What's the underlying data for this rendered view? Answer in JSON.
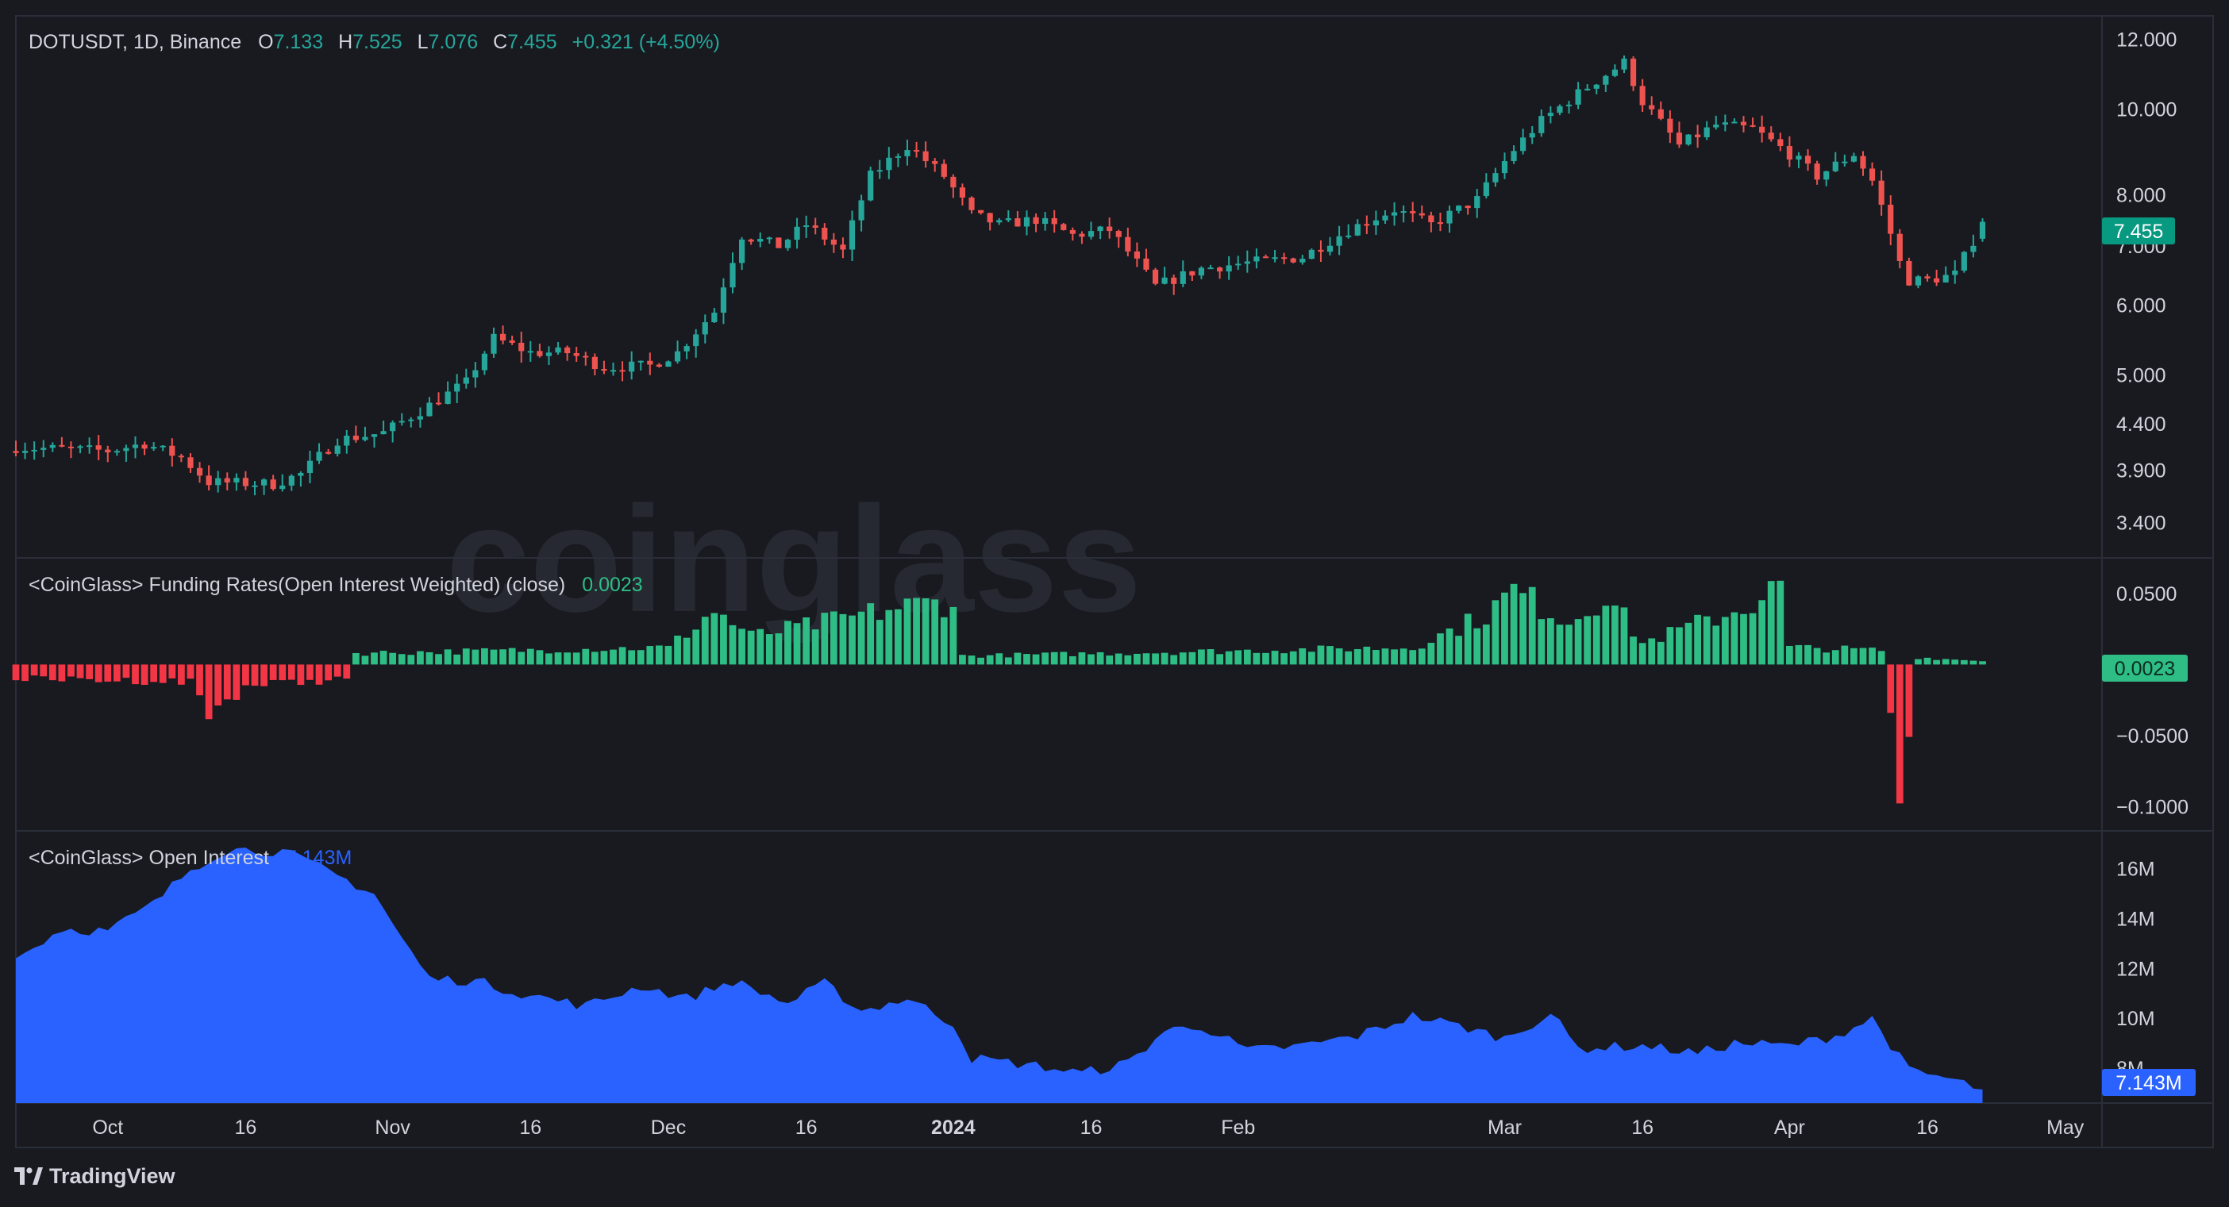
{
  "main_pane": {
    "symbol": "DOTUSDT, 1D, Binance",
    "ohlc": [
      {
        "label": "O",
        "value": "7.133"
      },
      {
        "label": "H",
        "value": "7.525"
      },
      {
        "label": "L",
        "value": "7.076"
      },
      {
        "label": "C",
        "value": "7.455"
      }
    ],
    "change": "+0.321 (+4.50%)",
    "last_price_label": "7.455",
    "up_color": "#26a69a",
    "down_color": "#ef5350"
  },
  "funding_pane": {
    "title": "<CoinGlass> Funding Rates(Open Interest Weighted) (close)",
    "value": "0.0023",
    "last_value_label": "0.0023",
    "up_color": "#2ebd85",
    "down_color": "#f23645"
  },
  "oi_pane": {
    "title": "<CoinGlass> Open Interest",
    "value": "7.143M",
    "last_value_label": "7.143M",
    "fill_color": "#2962ff"
  },
  "watermark": "coinglass",
  "brand": "TradingView",
  "chart_data": [
    {
      "type": "candlestick",
      "axis_scale": "log",
      "y_ticks": [
        "12.000",
        "10.000",
        "8.000",
        "7.000",
        "6.000",
        "5.000",
        "4.400",
        "3.900",
        "3.400"
      ],
      "x_ticks": [
        "Oct",
        "16",
        "Nov",
        "16",
        "Dec",
        "16",
        "2024",
        "16",
        "Feb",
        "Mar",
        "16",
        "Apr",
        "16",
        "May"
      ],
      "x_range": [
        "2023-09-21",
        "2024-05-05"
      ],
      "close_key_points": [
        {
          "date": "2023-09-21",
          "close": 4.14
        },
        {
          "date": "2023-10-01",
          "close": 4.1
        },
        {
          "date": "2023-10-05",
          "close": 4.18
        },
        {
          "date": "2023-10-09",
          "close": 4.03
        },
        {
          "date": "2023-10-12",
          "close": 3.78
        },
        {
          "date": "2023-10-19",
          "close": 3.76
        },
        {
          "date": "2023-10-22",
          "close": 3.86
        },
        {
          "date": "2023-10-26",
          "close": 4.22
        },
        {
          "date": "2023-10-31",
          "close": 4.3
        },
        {
          "date": "2023-11-04",
          "close": 4.55
        },
        {
          "date": "2023-11-09",
          "close": 4.9
        },
        {
          "date": "2023-11-12",
          "close": 5.5
        },
        {
          "date": "2023-11-16",
          "close": 5.3
        },
        {
          "date": "2023-11-20",
          "close": 5.3
        },
        {
          "date": "2023-11-24",
          "close": 5.1
        },
        {
          "date": "2023-11-29",
          "close": 5.12
        },
        {
          "date": "2023-12-02",
          "close": 5.3
        },
        {
          "date": "2023-12-06",
          "close": 5.9
        },
        {
          "date": "2023-12-09",
          "close": 7.2
        },
        {
          "date": "2023-12-13",
          "close": 7.0
        },
        {
          "date": "2023-12-16",
          "close": 7.4
        },
        {
          "date": "2023-12-20",
          "close": 6.9
        },
        {
          "date": "2023-12-23",
          "close": 8.4
        },
        {
          "date": "2023-12-27",
          "close": 9.1
        },
        {
          "date": "2023-12-31",
          "close": 8.4
        },
        {
          "date": "2024-01-03",
          "close": 7.6
        },
        {
          "date": "2024-01-06",
          "close": 7.4
        },
        {
          "date": "2024-01-10",
          "close": 7.5
        },
        {
          "date": "2024-01-14",
          "close": 7.2
        },
        {
          "date": "2024-01-18",
          "close": 7.3
        },
        {
          "date": "2024-01-23",
          "close": 6.3
        },
        {
          "date": "2024-01-28",
          "close": 6.6
        },
        {
          "date": "2024-02-02",
          "close": 6.7
        },
        {
          "date": "2024-02-08",
          "close": 6.8
        },
        {
          "date": "2024-02-13",
          "close": 7.3
        },
        {
          "date": "2024-02-18",
          "close": 7.7
        },
        {
          "date": "2024-02-22",
          "close": 7.4
        },
        {
          "date": "2024-02-27",
          "close": 7.9
        },
        {
          "date": "2024-03-02",
          "close": 9.0
        },
        {
          "date": "2024-03-05",
          "close": 9.7
        },
        {
          "date": "2024-03-10",
          "close": 10.6
        },
        {
          "date": "2024-03-14",
          "close": 11.3
        },
        {
          "date": "2024-03-16",
          "close": 10.2
        },
        {
          "date": "2024-03-20",
          "close": 9.1
        },
        {
          "date": "2024-03-24",
          "close": 9.6
        },
        {
          "date": "2024-03-28",
          "close": 9.5
        },
        {
          "date": "2024-04-01",
          "close": 8.9
        },
        {
          "date": "2024-04-04",
          "close": 8.4
        },
        {
          "date": "2024-04-08",
          "close": 8.9
        },
        {
          "date": "2024-04-10",
          "close": 8.3
        },
        {
          "date": "2024-04-13",
          "close": 6.7
        },
        {
          "date": "2024-04-14",
          "close": 6.4
        },
        {
          "date": "2024-04-16",
          "close": 6.4
        },
        {
          "date": "2024-04-19",
          "close": 6.5
        },
        {
          "date": "2024-04-21",
          "close": 7.1
        },
        {
          "date": "2024-04-22",
          "close": 7.455
        }
      ],
      "last_bar": {
        "date": "2024-04-22",
        "open": 7.133,
        "high": 7.525,
        "low": 7.076,
        "close": 7.455
      }
    },
    {
      "type": "bar",
      "name": "Funding Rates(Open Interest Weighted) (close)",
      "y_ticks": [
        "0.0500",
        "−0.0500",
        "−0.1000"
      ],
      "key_points": [
        {
          "date": "2023-09-21",
          "value": -0.01
        },
        {
          "date": "2023-10-10",
          "value": -0.012
        },
        {
          "date": "2023-10-12",
          "value": -0.035
        },
        {
          "date": "2023-10-16",
          "value": -0.015
        },
        {
          "date": "2023-10-27",
          "value": -0.01
        },
        {
          "date": "2023-10-28",
          "value": 0.008
        },
        {
          "date": "2023-11-15",
          "value": 0.01
        },
        {
          "date": "2023-12-01",
          "value": 0.012
        },
        {
          "date": "2023-12-06",
          "value": 0.038
        },
        {
          "date": "2023-12-10",
          "value": 0.02
        },
        {
          "date": "2023-12-20",
          "value": 0.032
        },
        {
          "date": "2023-12-26",
          "value": 0.04
        },
        {
          "date": "2024-01-01",
          "value": 0.045
        },
        {
          "date": "2024-01-02",
          "value": 0.006
        },
        {
          "date": "2024-02-20",
          "value": 0.012
        },
        {
          "date": "2024-02-28",
          "value": 0.035
        },
        {
          "date": "2024-03-02",
          "value": 0.052
        },
        {
          "date": "2024-03-08",
          "value": 0.03
        },
        {
          "date": "2024-03-12",
          "value": 0.05
        },
        {
          "date": "2024-03-16",
          "value": 0.015
        },
        {
          "date": "2024-03-27",
          "value": 0.04
        },
        {
          "date": "2024-03-31",
          "value": 0.055
        },
        {
          "date": "2024-04-01",
          "value": 0.012
        },
        {
          "date": "2024-04-11",
          "value": 0.01
        },
        {
          "date": "2024-04-12",
          "value": -0.03
        },
        {
          "date": "2024-04-13",
          "value": -0.105
        },
        {
          "date": "2024-04-15",
          "value": 0.005
        },
        {
          "date": "2024-04-22",
          "value": 0.0023
        }
      ]
    },
    {
      "type": "area",
      "name": "Open Interest",
      "y_ticks": [
        "16M",
        "14M",
        "12M",
        "10M",
        "8M"
      ],
      "key_points": [
        {
          "date": "2023-09-21",
          "value": 12.4
        },
        {
          "date": "2023-09-26",
          "value": 13.6
        },
        {
          "date": "2023-10-01",
          "value": 13.5
        },
        {
          "date": "2023-10-06",
          "value": 14.6
        },
        {
          "date": "2023-10-10",
          "value": 16.0
        },
        {
          "date": "2023-10-14",
          "value": 16.8
        },
        {
          "date": "2023-10-20",
          "value": 16.7
        },
        {
          "date": "2023-10-25",
          "value": 15.9
        },
        {
          "date": "2023-10-30",
          "value": 15.0
        },
        {
          "date": "2023-11-02",
          "value": 13.2
        },
        {
          "date": "2023-11-05",
          "value": 11.6
        },
        {
          "date": "2023-11-10",
          "value": 11.5
        },
        {
          "date": "2023-11-15",
          "value": 11.0
        },
        {
          "date": "2023-11-22",
          "value": 10.5
        },
        {
          "date": "2023-11-28",
          "value": 11.3
        },
        {
          "date": "2023-12-03",
          "value": 10.8
        },
        {
          "date": "2023-12-08",
          "value": 11.5
        },
        {
          "date": "2023-12-14",
          "value": 10.6
        },
        {
          "date": "2023-12-18",
          "value": 11.4
        },
        {
          "date": "2023-12-22",
          "value": 10.3
        },
        {
          "date": "2023-12-27",
          "value": 10.8
        },
        {
          "date": "2024-01-01",
          "value": 9.8
        },
        {
          "date": "2024-01-03",
          "value": 8.4
        },
        {
          "date": "2024-01-10",
          "value": 8.1
        },
        {
          "date": "2024-01-15",
          "value": 7.8
        },
        {
          "date": "2024-01-20",
          "value": 8.2
        },
        {
          "date": "2024-01-24",
          "value": 9.5
        },
        {
          "date": "2024-01-28",
          "value": 9.7
        },
        {
          "date": "2024-02-02",
          "value": 8.7
        },
        {
          "date": "2024-02-08",
          "value": 8.9
        },
        {
          "date": "2024-02-14",
          "value": 9.3
        },
        {
          "date": "2024-02-20",
          "value": 10.1
        },
        {
          "date": "2024-02-25",
          "value": 9.7
        },
        {
          "date": "2024-03-01",
          "value": 9.2
        },
        {
          "date": "2024-03-06",
          "value": 10.2
        },
        {
          "date": "2024-03-09",
          "value": 8.8
        },
        {
          "date": "2024-03-16",
          "value": 8.9
        },
        {
          "date": "2024-03-22",
          "value": 8.6
        },
        {
          "date": "2024-03-26",
          "value": 9.0
        },
        {
          "date": "2024-04-01",
          "value": 8.9
        },
        {
          "date": "2024-04-06",
          "value": 9.3
        },
        {
          "date": "2024-04-10",
          "value": 10.0
        },
        {
          "date": "2024-04-14",
          "value": 7.9
        },
        {
          "date": "2024-04-18",
          "value": 7.6
        },
        {
          "date": "2024-04-22",
          "value": 7.143
        }
      ]
    }
  ]
}
